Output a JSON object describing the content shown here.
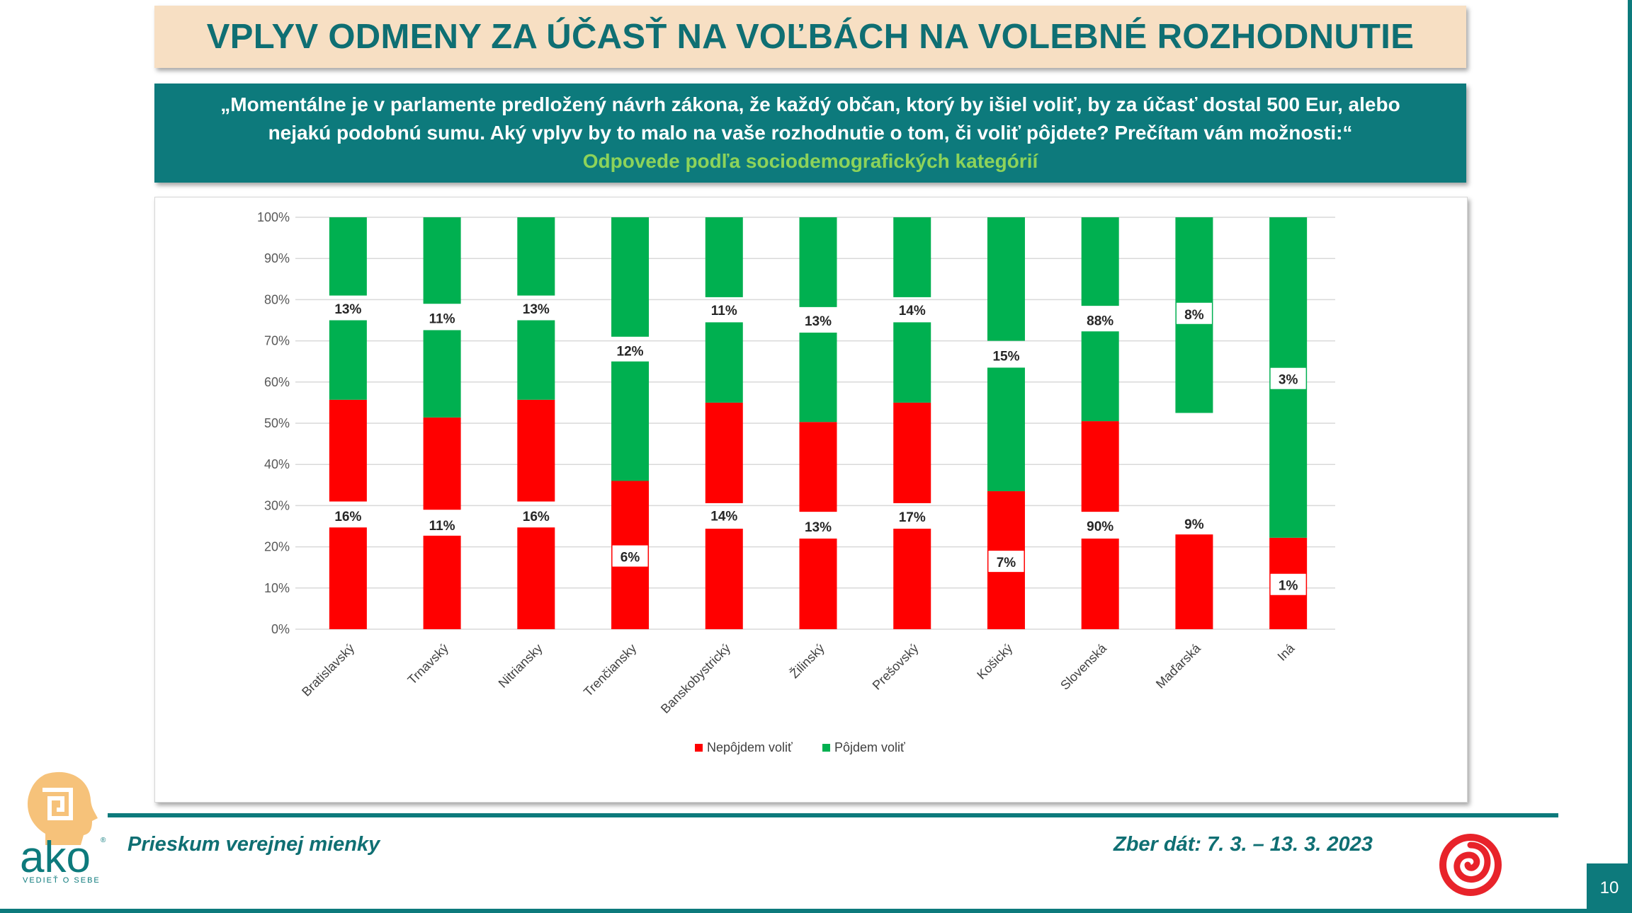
{
  "title": "VPLYV ODMENY ZA ÚČASŤ NA VOĽBÁCH NA VOLEBNÉ ROZHODNUTIE",
  "question": {
    "line1": "„Momentálne je v parlamente predložený návrh zákona, že každý občan, ktorý by išiel voliť, by za účasť dostal 500 Eur, alebo",
    "line2": "nejakú podobnú sumu. Aký vplyv by to malo na  vaše rozhodnutie o tom, či voliť pôjdete? Prečítam vám možnosti:“",
    "subtitle": "Odpovede podľa sociodemografických kategórií"
  },
  "chart_data": {
    "type": "bar",
    "stacked": true,
    "categories": [
      "Bratislavský",
      "Trnavský",
      "Nitriansky",
      "Trenčiansky",
      "Banskobystrický",
      "Žilinský",
      "Prešovský",
      "Košický",
      "Slovenská",
      "Maďarská",
      "Iná"
    ],
    "y_ticks": [
      "0%",
      "10%",
      "20%",
      "30%",
      "40%",
      "50%",
      "60%",
      "70%",
      "80%",
      "90%",
      "100%"
    ],
    "ylim": [
      0,
      100
    ],
    "grid": true,
    "legend_position": "bottom",
    "series": [
      {
        "name": "Nepôjdem voliť",
        "color": "#ff0000",
        "segments": [
          [
            24.7,
            31,
            55.7
          ],
          [
            22.7,
            29,
            51.4
          ],
          [
            24.7,
            31,
            55.7
          ],
          [
            36,
            36,
            36
          ],
          [
            24.4,
            30.6,
            55
          ],
          [
            22,
            28.5,
            50.3
          ],
          [
            24.4,
            30.6,
            55
          ],
          [
            33.5,
            33.5,
            33.5
          ],
          [
            22,
            28.5,
            50.5
          ],
          [
            23,
            52.5,
            52.5
          ],
          [
            22.2,
            22.2,
            22.2
          ]
        ],
        "labels": [
          "16%",
          "11%",
          "16%",
          "6%",
          "14%",
          "13%",
          "17%",
          "7%",
          "90%",
          "9%",
          "1%"
        ],
        "label_y": [
          27.5,
          25.3,
          27.5,
          17.6,
          27.6,
          24.9,
          27.3,
          16.3,
          25.1,
          25.6,
          10.7
        ],
        "label_boxed": [
          false,
          false,
          false,
          true,
          false,
          false,
          false,
          true,
          false,
          true,
          true
        ]
      },
      {
        "name": "Pôjdem voliť",
        "color": "#00b050",
        "segments": [
          [
            55.7,
            75,
            100
          ],
          [
            51.4,
            72.6,
            100
          ],
          [
            55.7,
            75,
            100
          ],
          [
            36,
            65,
            100
          ],
          [
            55,
            74.5,
            100
          ],
          [
            50.3,
            72,
            100
          ],
          [
            55,
            74.5,
            100
          ],
          [
            33.5,
            63.5,
            100
          ],
          [
            50.5,
            72.3,
            100
          ],
          [
            52.5,
            52.5,
            100
          ],
          [
            22.2,
            22.2,
            100
          ]
        ],
        "starts_gap": [
          75,
          72.6,
          75,
          65,
          74.5,
          72,
          74.5,
          63.5,
          72.3,
          null,
          null
        ],
        "ends_gap": [
          81,
          79,
          81,
          71,
          80.6,
          78.2,
          80.6,
          70,
          78.5,
          null,
          null
        ],
        "labels": [
          "13%",
          "11%",
          "13%",
          "12%",
          "11%",
          "13%",
          "14%",
          "15%",
          "88%",
          "8%",
          "3%"
        ],
        "label_y": [
          77.8,
          75.5,
          77.8,
          67.6,
          77.5,
          74.9,
          77.5,
          66.4,
          75.0,
          76.5,
          60.7
        ],
        "label_boxed": [
          false,
          false,
          false,
          false,
          false,
          false,
          false,
          false,
          false,
          true,
          true
        ]
      }
    ]
  },
  "footer": {
    "left": "Prieskum verejnej mienky",
    "right": "Zber dát: 7. 3. – 13. 3. 2023",
    "page": "10"
  },
  "logo": {
    "text": "ako",
    "tagline": "VEDIEŤ O SEBE"
  },
  "colors": {
    "teal": "#0d7a7c",
    "title_bg": "#f7dfc3",
    "subtitle_green": "#8dd35a",
    "red": "#ff0000",
    "green": "#00b050"
  }
}
